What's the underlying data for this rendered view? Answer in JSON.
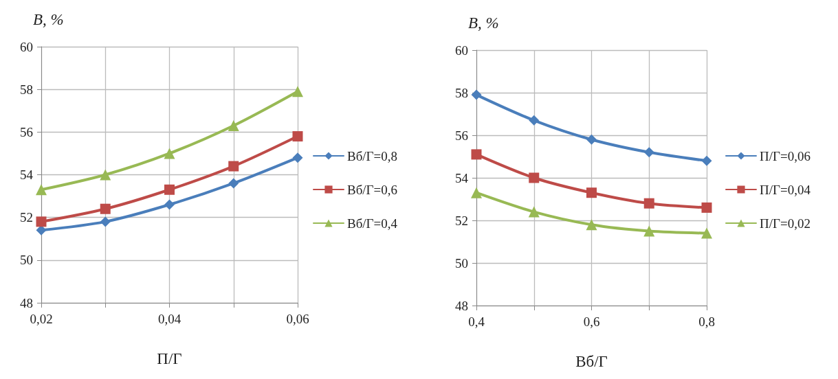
{
  "chart_data": [
    {
      "type": "line",
      "ylabel": "B, %",
      "xlabel": "П/Г",
      "x": [
        0.02,
        0.03,
        0.04,
        0.05,
        0.06
      ],
      "xlim": [
        0.02,
        0.06
      ],
      "xticks": [
        {
          "value": 0.02,
          "label": "0,02"
        },
        {
          "value": 0.03,
          "label": null
        },
        {
          "value": 0.04,
          "label": "0,04"
        },
        {
          "value": 0.05,
          "label": null
        },
        {
          "value": 0.06,
          "label": "0,06"
        }
      ],
      "ylim": [
        48,
        60
      ],
      "yticks": [
        48,
        50,
        52,
        54,
        56,
        58,
        60
      ],
      "grid": true,
      "legend": "right",
      "line_style": "solid",
      "series": [
        {
          "name": "Вб/Г=0,8",
          "color": "#4a7ebb",
          "marker": "diamond",
          "values": [
            51.4,
            51.8,
            52.6,
            53.6,
            54.8
          ]
        },
        {
          "name": "Вб/Г=0,6",
          "color": "#be4b48",
          "marker": "square",
          "values": [
            51.8,
            52.4,
            53.3,
            54.4,
            55.8
          ]
        },
        {
          "name": "Вб/Г=0,4",
          "color": "#98b954",
          "marker": "triangle",
          "values": [
            53.3,
            54.0,
            55.0,
            56.3,
            57.9
          ]
        }
      ]
    },
    {
      "type": "line",
      "ylabel": "B, %",
      "xlabel": "Вб/Г",
      "x": [
        0.4,
        0.5,
        0.6,
        0.7,
        0.8
      ],
      "xlim": [
        0.4,
        0.8
      ],
      "xticks": [
        {
          "value": 0.4,
          "label": "0,4"
        },
        {
          "value": 0.5,
          "label": null
        },
        {
          "value": 0.6,
          "label": "0,6"
        },
        {
          "value": 0.7,
          "label": null
        },
        {
          "value": 0.8,
          "label": "0,8"
        }
      ],
      "ylim": [
        48,
        60
      ],
      "yticks": [
        48,
        50,
        52,
        54,
        56,
        58,
        60
      ],
      "grid": true,
      "legend": "right",
      "line_style": "solid",
      "series": [
        {
          "name": "П/Г=0,06",
          "color": "#4a7ebb",
          "marker": "diamond",
          "values": [
            57.9,
            56.7,
            55.8,
            55.2,
            54.8
          ]
        },
        {
          "name": "П/Г=0,04",
          "color": "#be4b48",
          "marker": "square",
          "values": [
            55.1,
            54.0,
            53.3,
            52.8,
            52.6
          ]
        },
        {
          "name": "П/Г=0,02",
          "color": "#98b954",
          "marker": "triangle",
          "values": [
            53.3,
            52.4,
            51.8,
            51.5,
            51.4
          ]
        }
      ]
    }
  ]
}
